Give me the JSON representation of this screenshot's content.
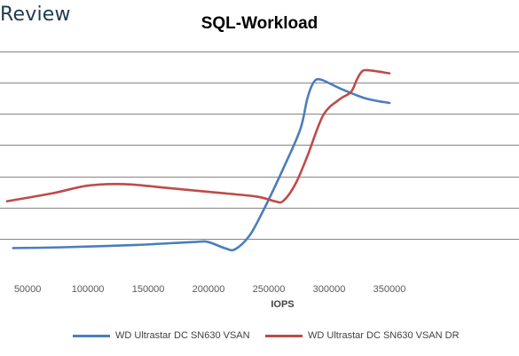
{
  "brand": "Review",
  "chart_data": {
    "type": "line",
    "title": "SQL-Workload",
    "xlabel": "IOPS",
    "ylabel": "",
    "xlim": [
      33000,
      350000
    ],
    "ylim": [
      0,
      14
    ],
    "xticks": [
      50000,
      100000,
      150000,
      200000,
      250000,
      300000,
      350000
    ],
    "xtick_labels": [
      "50000",
      "100000",
      "150000",
      "200000",
      "250000",
      "300000",
      "350000"
    ],
    "yticks": [
      2,
      4,
      6,
      8,
      10,
      12,
      14
    ],
    "grid": true,
    "legend_position": "bottom",
    "series": [
      {
        "name": "WD Ultrastar DC SN630 VSAN",
        "color": "#4a7ebb",
        "points": [
          [
            38000,
            1.4
          ],
          [
            80000,
            1.45
          ],
          [
            140000,
            1.6
          ],
          [
            190000,
            1.8
          ],
          [
            200000,
            1.78
          ],
          [
            214000,
            1.38
          ],
          [
            222000,
            1.32
          ],
          [
            234000,
            2.2
          ],
          [
            246000,
            3.9
          ],
          [
            262000,
            6.5
          ],
          [
            276000,
            9.0
          ],
          [
            282000,
            11.0
          ],
          [
            287000,
            12.0
          ],
          [
            293000,
            12.2
          ],
          [
            310000,
            11.6
          ],
          [
            330000,
            11.0
          ],
          [
            350000,
            10.7
          ]
        ]
      },
      {
        "name": "WD Ultrastar DC SN630 VSAN DR",
        "color": "#be4b48",
        "points": [
          [
            33000,
            4.4
          ],
          [
            70000,
            4.9
          ],
          [
            100000,
            5.4
          ],
          [
            130000,
            5.5
          ],
          [
            160000,
            5.3
          ],
          [
            200000,
            5.0
          ],
          [
            240000,
            4.7
          ],
          [
            255000,
            4.4
          ],
          [
            262000,
            4.42
          ],
          [
            272000,
            5.5
          ],
          [
            282000,
            7.3
          ],
          [
            295000,
            9.9
          ],
          [
            308000,
            10.9
          ],
          [
            318000,
            11.4
          ],
          [
            323000,
            12.2
          ],
          [
            327000,
            12.7
          ],
          [
            332000,
            12.8
          ],
          [
            350000,
            12.6
          ]
        ]
      }
    ]
  }
}
